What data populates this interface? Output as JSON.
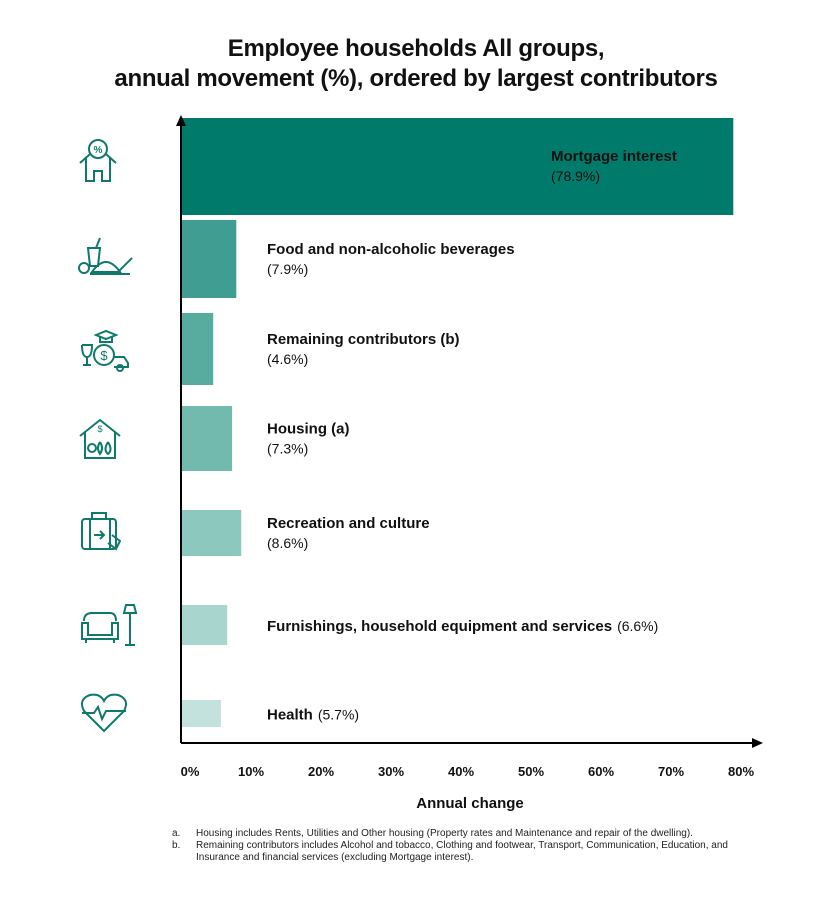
{
  "chart_data": {
    "type": "bar",
    "orientation": "horizontal",
    "title": [
      "Employee households All groups,",
      "annual movement (%), ordered by largest contributors"
    ],
    "xlabel": "Annual change",
    "xlim": [
      0,
      80
    ],
    "xticks": [
      "0%",
      "10%",
      "20%",
      "30%",
      "40%",
      "50%",
      "60%",
      "70%",
      "80%"
    ],
    "grid": false,
    "categories": [
      "Mortgage interest",
      "Food and non-alcoholic beverages",
      "Remaining contributors (b)",
      "Housing (a)",
      "Recreation and culture",
      "Furnishings, household equipment and services",
      "Health"
    ],
    "values": [
      78.9,
      7.9,
      4.6,
      7.3,
      8.6,
      6.6,
      5.7
    ],
    "value_labels": [
      "(78.9%)",
      "(7.9%)",
      "(4.6%)",
      "(7.3%)",
      "(8.6%)",
      "(6.6%)",
      "(5.7%)"
    ],
    "colors": [
      "#007b6b",
      "#3f9e91",
      "#58ab9f",
      "#72b9ae",
      "#8dc8bf",
      "#a9d5cf",
      "#c3e2de"
    ],
    "icons": [
      "house-percent-icon",
      "food-icon",
      "money-education-icon",
      "house-utilities-icon",
      "luggage-icon",
      "armchair-lamp-icon",
      "heart-pulse-icon"
    ]
  },
  "footnotes": [
    {
      "marker": "a.",
      "text": "Housing includes Rents, Utilities and Other housing (Property rates and Maintenance and repair of the dwelling)."
    },
    {
      "marker": "b.",
      "text": "Remaining contributors includes Alcohol and tobacco, Clothing and footwear, Transport, Communication, Education, and Insurance and financial services (excluding Mortgage interest)."
    }
  ]
}
